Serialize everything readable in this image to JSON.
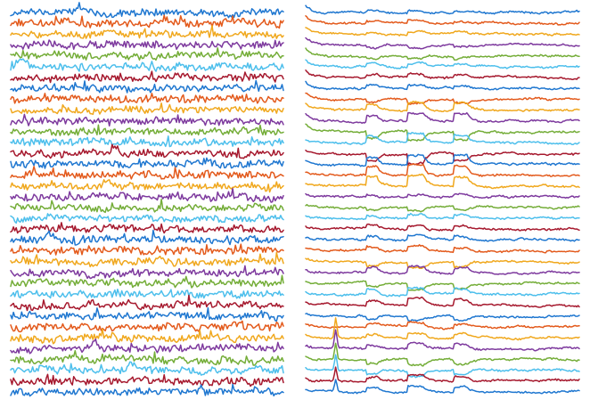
{
  "chart_data": [
    {
      "type": "line",
      "title": "",
      "xlabel": "",
      "ylabel": "",
      "axes": "hidden",
      "grid": false,
      "legend": "none",
      "trace_count": 36,
      "samples_per_trace": 200,
      "color_cycle": [
        "#1f77d0",
        "#e35a1c",
        "#f0a81e",
        "#7e3a9e",
        "#74ad38",
        "#4dbfec",
        "#a6192e"
      ],
      "style": "noisy",
      "transients": [
        {
          "trace": 5,
          "x": 0.04,
          "amp": 0.5
        },
        {
          "trace": 13,
          "x": 0.38,
          "amp": 0.4
        },
        {
          "trace": 16,
          "x": 0.36,
          "amp": 0.35
        },
        {
          "trace": 21,
          "x": 0.14,
          "amp": 0.35
        },
        {
          "trace": 31,
          "x": 0.3,
          "amp": 0.3
        },
        {
          "trace": 33,
          "x": 0.44,
          "amp": 0.3
        }
      ]
    },
    {
      "type": "line",
      "title": "",
      "xlabel": "",
      "ylabel": "",
      "axes": "hidden",
      "grid": false,
      "legend": "none",
      "trace_count": 36,
      "samples_per_trace": 220,
      "color_cycle": [
        "#1f77d0",
        "#e35a1c",
        "#f0a81e",
        "#7e3a9e",
        "#74ad38",
        "#4dbfec",
        "#a6192e"
      ],
      "style": "smooth",
      "events": [
        {
          "x": 0.22,
          "amp": 0.9,
          "width": 0.04
        },
        {
          "x": 0.37,
          "amp": 1.2,
          "width": 0.06
        },
        {
          "x": 0.54,
          "amp": 1.0,
          "width": 0.05
        }
      ],
      "spike": {
        "x": 0.11,
        "amp": 2.4
      }
    }
  ]
}
